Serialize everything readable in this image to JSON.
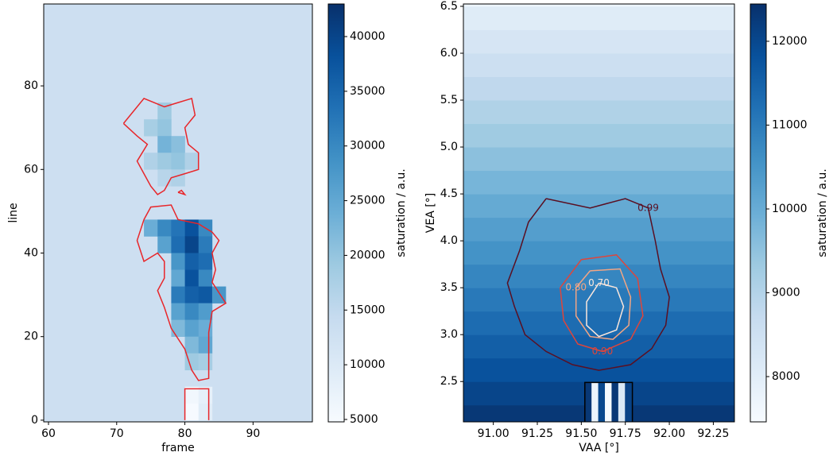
{
  "chart_data": [
    {
      "type": "heatmap",
      "xlabel": "frame",
      "ylabel": "line",
      "xlim": [
        59.3,
        98.7
      ],
      "ylim": [
        -0.4,
        99.6
      ],
      "xticks": [
        60,
        70,
        80,
        90
      ],
      "yticks": [
        0,
        20,
        40,
        60,
        80
      ],
      "colormap": "Blues",
      "background": 13000,
      "cell_width": 2,
      "cell_height": 4,
      "cells": [
        [
          76,
          72,
          19000
        ],
        [
          74,
          68,
          18000
        ],
        [
          76,
          68,
          20000
        ],
        [
          76,
          64,
          23000
        ],
        [
          78,
          64,
          21000
        ],
        [
          74,
          60,
          17000
        ],
        [
          76,
          60,
          19000
        ],
        [
          78,
          60,
          20000
        ],
        [
          80,
          60,
          17000
        ],
        [
          76,
          56,
          16000
        ],
        [
          78,
          56,
          17000
        ],
        [
          74,
          44,
          24000
        ],
        [
          76,
          44,
          30000
        ],
        [
          78,
          44,
          33000
        ],
        [
          80,
          44,
          38000
        ],
        [
          82,
          44,
          30000
        ],
        [
          76,
          40,
          26000
        ],
        [
          78,
          40,
          34000
        ],
        [
          80,
          40,
          40000
        ],
        [
          82,
          40,
          32000
        ],
        [
          78,
          36,
          28000
        ],
        [
          80,
          36,
          36000
        ],
        [
          82,
          36,
          34000
        ],
        [
          78,
          32,
          25000
        ],
        [
          80,
          32,
          38000
        ],
        [
          82,
          32,
          30000
        ],
        [
          78,
          28,
          32000
        ],
        [
          80,
          28,
          36000
        ],
        [
          82,
          28,
          37000
        ],
        [
          84,
          28,
          28000
        ],
        [
          78,
          24,
          26000
        ],
        [
          80,
          24,
          30000
        ],
        [
          82,
          24,
          27000
        ],
        [
          78,
          20,
          22000
        ],
        [
          80,
          20,
          26000
        ],
        [
          82,
          20,
          24000
        ],
        [
          80,
          16,
          22000
        ],
        [
          82,
          16,
          25000
        ],
        [
          80,
          12,
          19000
        ],
        [
          82,
          12,
          18000
        ],
        [
          80,
          0,
          5000
        ],
        [
          82,
          0,
          9000
        ],
        [
          80,
          4,
          6000
        ],
        [
          82,
          4,
          8000
        ]
      ],
      "contours": [
        {
          "color": "#e8262a",
          "x": [
            71,
            74,
            77,
            79,
            81,
            81.5,
            80,
            80.5,
            82,
            82,
            80,
            78,
            77,
            76,
            75,
            74,
            73,
            74.5,
            73,
            71
          ],
          "y": [
            71,
            77,
            75,
            76,
            77,
            73,
            70,
            66,
            64,
            60,
            59,
            58,
            55,
            54,
            56,
            59,
            62,
            66,
            68,
            71
          ]
        },
        {
          "color": "#e8262a",
          "x": [
            79,
            80,
            79.5,
            79
          ],
          "y": [
            54.5,
            54,
            55,
            54.5
          ]
        },
        {
          "color": "#e8262a",
          "x": [
            74,
            75,
            78,
            79,
            82,
            84,
            85,
            84,
            84.5,
            84,
            86,
            84,
            83.5,
            83.5,
            82,
            81,
            80,
            78,
            77,
            76,
            77,
            77,
            76,
            74,
            73,
            74
          ],
          "y": [
            48,
            51,
            51.5,
            48,
            47,
            45,
            43,
            40,
            36,
            33,
            28,
            26,
            21,
            10,
            9.5,
            12,
            17,
            22,
            27,
            31,
            34,
            38,
            40,
            38,
            43,
            48
          ]
        },
        {
          "color": "#e8262a",
          "x": [
            80,
            80,
            83.5,
            83.5
          ],
          "y": [
            0,
            7.5,
            7.5,
            0
          ]
        }
      ],
      "colorbar": {
        "label": "saturation / a.u.",
        "lim": [
          4780,
          42980
        ],
        "ticks": [
          5000,
          10000,
          15000,
          20000,
          25000,
          30000,
          35000,
          40000
        ]
      }
    },
    {
      "type": "heatmap",
      "xlabel": "VAA [°]",
      "ylabel": "VEA [°]",
      "xlim": [
        90.83,
        92.37
      ],
      "ylim": [
        2.07,
        6.525
      ],
      "xticks": [
        {
          "value": 91,
          "label": "91.00"
        },
        91.25,
        {
          "value": 91.5,
          "label": "91.50"
        },
        91.75,
        {
          "value": 92,
          "label": "92.00"
        },
        92.25
      ],
      "yticks": [
        2.5,
        {
          "value": 3,
          "label": "3.0"
        },
        3.5,
        {
          "value": 4,
          "label": "4.0"
        },
        4.5,
        {
          "value": 5,
          "label": "5.0"
        },
        5.5,
        {
          "value": 6,
          "label": "6.0"
        },
        6.5
      ],
      "colormap": "Blues",
      "row_edges": [
        2.0,
        2.25,
        2.5,
        2.75,
        3.0,
        3.25,
        3.5,
        3.75,
        4.0,
        4.25,
        4.5,
        4.75,
        5.0,
        5.25,
        5.5,
        5.75,
        6.0,
        6.25,
        6.5,
        6.75
      ],
      "row_values": [
        12300,
        12050,
        11800,
        11550,
        11300,
        11050,
        10800,
        10550,
        10300,
        10050,
        9800,
        9550,
        9300,
        9050,
        8800,
        8550,
        8300,
        8050,
        7700
      ],
      "cell_width": 0.038,
      "cell_height": 0.42,
      "cells": [
        [
          91.52,
          2.07,
          12300
        ],
        [
          91.558,
          2.07,
          7700
        ],
        [
          91.596,
          2.07,
          12000
        ],
        [
          91.634,
          2.07,
          7500
        ],
        [
          91.672,
          2.07,
          12300
        ],
        [
          91.71,
          2.07,
          8200
        ],
        [
          91.748,
          2.07,
          12100
        ]
      ],
      "contours": [
        {
          "color": "#5a0f22",
          "label": "0.99",
          "x": [
            91.3,
            91.55,
            91.75,
            91.88,
            91.92,
            91.95,
            92.0,
            91.98,
            91.9,
            91.78,
            91.6,
            91.45,
            91.3,
            91.18,
            91.12,
            91.08,
            91.15,
            91.2,
            91.3
          ],
          "y": [
            4.45,
            4.35,
            4.45,
            4.35,
            4.0,
            3.7,
            3.4,
            3.1,
            2.85,
            2.68,
            2.62,
            2.68,
            2.82,
            3.0,
            3.3,
            3.55,
            3.9,
            4.2,
            4.45
          ]
        },
        {
          "color": "#e0453a",
          "label": "0.90",
          "x": [
            91.5,
            91.7,
            91.82,
            91.85,
            91.78,
            91.62,
            91.48,
            91.4,
            91.38,
            91.5
          ],
          "y": [
            3.8,
            3.85,
            3.6,
            3.2,
            2.95,
            2.82,
            2.9,
            3.15,
            3.5,
            3.8
          ]
        },
        {
          "color": "#f4a582",
          "label": "0.80",
          "x": [
            91.55,
            91.72,
            91.78,
            91.77,
            91.68,
            91.55,
            91.47,
            91.47,
            91.55
          ],
          "y": [
            3.68,
            3.7,
            3.4,
            3.1,
            2.95,
            2.98,
            3.2,
            3.5,
            3.68
          ]
        },
        {
          "color": "#fbe7dc",
          "label": "0.70",
          "x": [
            91.6,
            91.7,
            91.74,
            91.7,
            91.6,
            91.53,
            91.53,
            91.6
          ],
          "y": [
            3.55,
            3.5,
            3.3,
            3.05,
            2.98,
            3.1,
            3.35,
            3.55
          ]
        },
        {
          "color": "#000000",
          "x": [
            91.52,
            91.52,
            91.79,
            91.79
          ],
          "y": [
            2.07,
            2.49,
            2.49,
            2.07
          ]
        }
      ],
      "colorbar": {
        "label": "saturation / a.u.",
        "lim": [
          7460,
          12445
        ],
        "ticks": [
          8000,
          9000,
          10000,
          11000,
          12000
        ]
      }
    }
  ]
}
